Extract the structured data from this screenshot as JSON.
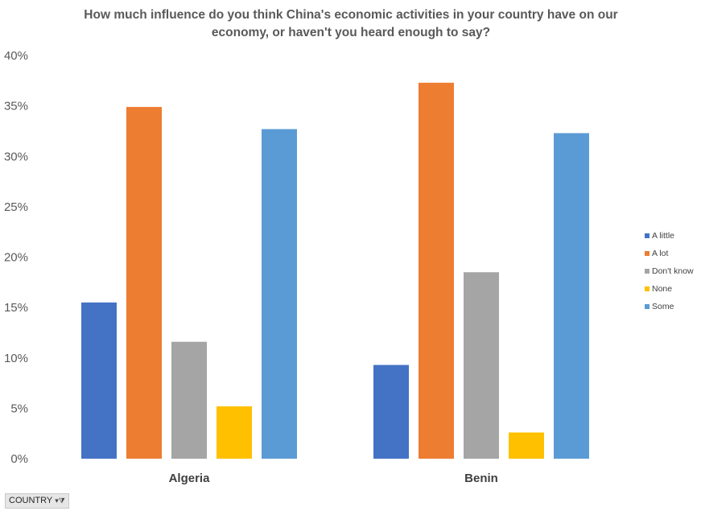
{
  "chart_data": {
    "type": "bar",
    "title": "How much influence do you think China's economic activities in your country have on our economy, or haven't you heard enough to say?",
    "categories": [
      "Algeria",
      "Benin"
    ],
    "series": [
      {
        "name": "A little",
        "color": "#4472C4",
        "values": [
          15.5,
          9.3
        ]
      },
      {
        "name": "A lot",
        "color": "#ED7D31",
        "values": [
          34.9,
          37.3
        ]
      },
      {
        "name": "Don't know",
        "color": "#A5A5A5",
        "values": [
          11.6,
          18.5
        ]
      },
      {
        "name": "None",
        "color": "#FFC000",
        "values": [
          5.2,
          2.6
        ]
      },
      {
        "name": "Some",
        "color": "#5B9BD5",
        "values": [
          32.7,
          32.3
        ]
      }
    ],
    "yticks": [
      "0%",
      "5%",
      "10%",
      "15%",
      "20%",
      "25%",
      "30%",
      "35%",
      "40%"
    ],
    "ylim": [
      0,
      40
    ],
    "legend_position": "right",
    "grid": false
  },
  "filter_button": {
    "label": "COUNTRY",
    "icon": "filter-dropdown-icon"
  }
}
